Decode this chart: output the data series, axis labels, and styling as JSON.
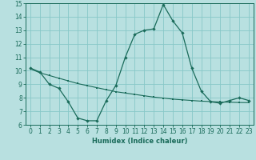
{
  "xlabel": "Humidex (Indice chaleur)",
  "x_values": [
    0,
    1,
    2,
    3,
    4,
    5,
    6,
    7,
    8,
    9,
    10,
    11,
    12,
    13,
    14,
    15,
    16,
    17,
    18,
    19,
    20,
    21,
    22,
    23
  ],
  "y_curve": [
    10.2,
    9.9,
    9.0,
    8.7,
    7.7,
    6.5,
    6.3,
    6.3,
    7.8,
    8.9,
    11.0,
    12.7,
    13.0,
    13.1,
    14.9,
    13.7,
    12.8,
    10.2,
    8.5,
    7.7,
    7.6,
    7.8,
    8.0,
    7.8
  ],
  "y_line": [
    10.15,
    9.85,
    9.65,
    9.45,
    9.25,
    9.05,
    8.9,
    8.75,
    8.6,
    8.45,
    8.35,
    8.25,
    8.15,
    8.05,
    7.98,
    7.9,
    7.85,
    7.8,
    7.75,
    7.72,
    7.69,
    7.67,
    7.65,
    7.64
  ],
  "line_color": "#1a6b5a",
  "background_color": "#b8e0e0",
  "grid_color": "#88c8c8",
  "xlim": [
    -0.5,
    23.5
  ],
  "ylim": [
    6,
    15
  ],
  "xticks": [
    0,
    1,
    2,
    3,
    4,
    5,
    6,
    7,
    8,
    9,
    10,
    11,
    12,
    13,
    14,
    15,
    16,
    17,
    18,
    19,
    20,
    21,
    22,
    23
  ],
  "yticks": [
    6,
    7,
    8,
    9,
    10,
    11,
    12,
    13,
    14,
    15
  ],
  "tick_fontsize": 5.5,
  "xlabel_fontsize": 6.0
}
